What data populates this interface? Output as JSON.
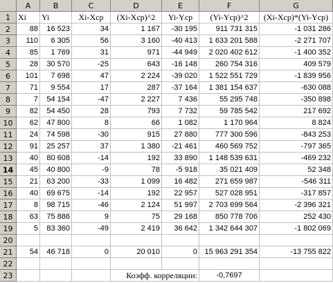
{
  "columns": [
    "A",
    "B",
    "C",
    "D",
    "E",
    "F",
    "G"
  ],
  "active_row": "14",
  "header_row": [
    "Xi",
    "Yi",
    "Xi-Xср",
    "(Xi-Xср)^2",
    "Yi-Yср",
    "(Yi-Yср)^2",
    "(Xi-Xср)*(Yi-Yср)"
  ],
  "rows": [
    [
      "88",
      "16 523",
      "34",
      "1 167",
      "-30 195",
      "911 731 315",
      "-1 031 286"
    ],
    [
      "110",
      "6 305",
      "56",
      "3 160",
      "-40 413",
      "1 633 201 588",
      "-2 271 707"
    ],
    [
      "85",
      "1 769",
      "31",
      "971",
      "-44 949",
      "2 020 402 612",
      "-1 400 352"
    ],
    [
      "28",
      "30 570",
      "-25",
      "643",
      "-16 148",
      "260 754 316",
      "409 579"
    ],
    [
      "101",
      "7 698",
      "47",
      "2 224",
      "-39 020",
      "1 522 551 729",
      "-1 839 956"
    ],
    [
      "71",
      "9 554",
      "17",
      "287",
      "-37 164",
      "1 381 154 637",
      "-630 088"
    ],
    [
      "7",
      "54 154",
      "-47",
      "2 227",
      "7 436",
      "55 295 748",
      "-350 898"
    ],
    [
      "82",
      "54 450",
      "28",
      "793",
      "7 732",
      "59 785 542",
      "217 692"
    ],
    [
      "62",
      "47 800",
      "8",
      "66",
      "1 082",
      "1 170 964",
      "8 824"
    ],
    [
      "24",
      "74 598",
      "-30",
      "915",
      "27 880",
      "777 300 596",
      "-843 253"
    ],
    [
      "91",
      "25 257",
      "37",
      "1 380",
      "-21 461",
      "460 569 752",
      "-797 365"
    ],
    [
      "40",
      "80 608",
      "-14",
      "192",
      "33 890",
      "1 148 539 631",
      "-469 232"
    ],
    [
      "45",
      "40 800",
      "-9",
      "78",
      "-5 918",
      "35 021 409",
      "52 348"
    ],
    [
      "21",
      "63 200",
      "-33",
      "1 099",
      "16 482",
      "271 659 987",
      "-546 311"
    ],
    [
      "40",
      "69 675",
      "-14",
      "192",
      "22 957",
      "527 028 951",
      "-317 857"
    ],
    [
      "8",
      "98 715",
      "-46",
      "2 124",
      "51 997",
      "2 703 699 564",
      "-2 396 321"
    ],
    [
      "63",
      "75 886",
      "9",
      "75",
      "29 168",
      "850 778 706",
      "252 430"
    ],
    [
      "5",
      "83 360",
      "-49",
      "2 419",
      "36 642",
      "1 342 644 307",
      "-1 802 069"
    ]
  ],
  "totals": [
    "54",
    "46 718",
    "0",
    "20 010",
    "0",
    "15 963 291 354",
    "-13 755 822"
  ],
  "correlation_label": "Коэфф. корреляции:",
  "correlation_value": "-0,7697"
}
